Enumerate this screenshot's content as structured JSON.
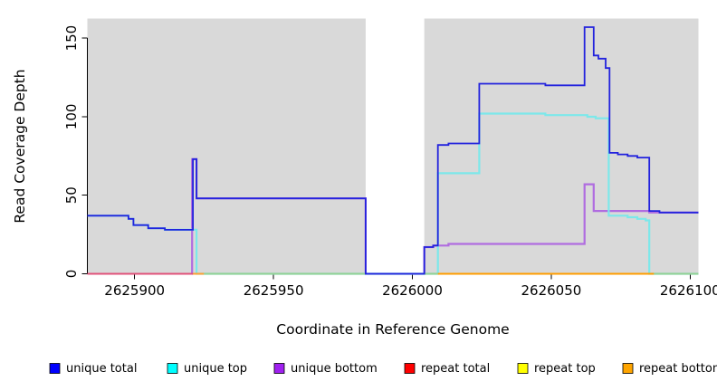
{
  "figure": {
    "background": "#ffffff",
    "plot_background": "#d9d9d9",
    "masked_region_color": "#ffffff"
  },
  "axes": {
    "x_title": "Coordinate in Reference Genome",
    "y_title": "Read Coverage Depth",
    "x_tick_labels": [
      "2625900",
      "2625950",
      "2626000",
      "2626050",
      "2626100"
    ],
    "y_tick_labels": [
      "0",
      "50",
      "100",
      "150"
    ]
  },
  "legend": {
    "items": [
      {
        "label": "unique total",
        "color": "#0000ff"
      },
      {
        "label": "unique top",
        "color": "#00ffff"
      },
      {
        "label": "unique bottom",
        "color": "#a020f0"
      },
      {
        "label": "repeat total",
        "color": "#ff0000"
      },
      {
        "label": "repeat top",
        "color": "#ffff00"
      },
      {
        "label": "repeat bottom",
        "color": "#ffa500"
      }
    ]
  },
  "chart_data": {
    "type": "line",
    "subtype": "step",
    "title": "",
    "xlabel": "Coordinate in Reference Genome",
    "ylabel": "Read Coverage Depth",
    "xlim": [
      2625883,
      2626103
    ],
    "ylim": [
      0,
      162.5
    ],
    "x_ticks": [
      2625900,
      2625950,
      2626000,
      2626050,
      2626100
    ],
    "y_ticks": [
      0,
      50,
      100,
      150
    ],
    "grid": false,
    "legend_position": "bottom",
    "masked_region": {
      "start": 2625983.2,
      "end": 2626004.3
    },
    "series": [
      {
        "name": "unique bottom",
        "line_color": "#b06ce0",
        "width": 2.2,
        "end_x": 2626103,
        "steps": [
          [
            2625920.6,
            0
          ],
          [
            2625920.7,
            73
          ],
          [
            2625922.3,
            48
          ],
          [
            2625983.2,
            0
          ],
          [
            2626004.3,
            17
          ],
          [
            2626007.5,
            18
          ],
          [
            2626013,
            19
          ],
          [
            2626062,
            57
          ],
          [
            2626065.3,
            40
          ],
          [
            2626085.3,
            39
          ]
        ]
      },
      {
        "name": "unique top",
        "line_color": "#7ce8ea",
        "width": 2.2,
        "end_x": 2626103,
        "steps": [
          [
            2625883,
            37
          ],
          [
            2625897.8,
            35
          ],
          [
            2625899.6,
            31
          ],
          [
            2625904.9,
            29
          ],
          [
            2625910.9,
            28
          ],
          [
            2625922.3,
            0
          ],
          [
            2626009.2,
            64
          ],
          [
            2626024.1,
            102
          ],
          [
            2626047.9,
            101
          ],
          [
            2626063,
            100
          ],
          [
            2626066,
            99
          ],
          [
            2626070.7,
            37
          ],
          [
            2626077.5,
            36
          ],
          [
            2626081,
            35
          ],
          [
            2626084,
            34
          ],
          [
            2626085.3,
            0
          ]
        ]
      },
      {
        "name": "unique total",
        "line_color": "#2222dd",
        "width": 1.8,
        "end_x": 2626103,
        "steps": [
          [
            2625883,
            37
          ],
          [
            2625897.8,
            35
          ],
          [
            2625899.6,
            31
          ],
          [
            2625904.9,
            29
          ],
          [
            2625910.9,
            28
          ],
          [
            2625921,
            73
          ],
          [
            2625922.3,
            48
          ],
          [
            2625983.2,
            0
          ],
          [
            2626004.3,
            17
          ],
          [
            2626007.5,
            18
          ],
          [
            2626009.2,
            82
          ],
          [
            2626013,
            83
          ],
          [
            2626024.1,
            121
          ],
          [
            2626047.9,
            120
          ],
          [
            2626062,
            157
          ],
          [
            2626065.3,
            139
          ],
          [
            2626067,
            137
          ],
          [
            2626069.6,
            131
          ],
          [
            2626071,
            77
          ],
          [
            2626074,
            76
          ],
          [
            2626077.5,
            75
          ],
          [
            2626081,
            74
          ],
          [
            2626085.3,
            40
          ],
          [
            2626089,
            39
          ]
        ]
      },
      {
        "name": "repeat total",
        "line_color": "#e0527a",
        "width": 2,
        "end_x": 2626103,
        "constant_zero": true,
        "steps": [
          [
            2625883,
            0
          ]
        ]
      },
      {
        "name": "repeat top",
        "line_color": "#eded6a",
        "width": 2,
        "end_x": 2626103,
        "constant_zero": true,
        "steps": [
          [
            2625883,
            0
          ]
        ]
      },
      {
        "name": "repeat bottom",
        "line_color": "#ff9d00",
        "width": 2,
        "end_x": 2626103,
        "constant_zero": true,
        "steps": [
          [
            2625883,
            0
          ]
        ]
      }
    ],
    "zero_line_segments": [
      {
        "from": 2625883,
        "to": 2625921,
        "color": "#e0527a"
      },
      {
        "from": 2625921,
        "to": 2625925,
        "color": "#ffa033"
      },
      {
        "from": 2625925,
        "to": 2625983.2,
        "color": "#93d193"
      },
      {
        "from": 2626004.3,
        "to": 2626009.2,
        "color": "#93d193"
      },
      {
        "from": 2626009.2,
        "to": 2626087,
        "color": "#ff9d00"
      },
      {
        "from": 2626087,
        "to": 2626103,
        "color": "#93d193"
      }
    ]
  }
}
